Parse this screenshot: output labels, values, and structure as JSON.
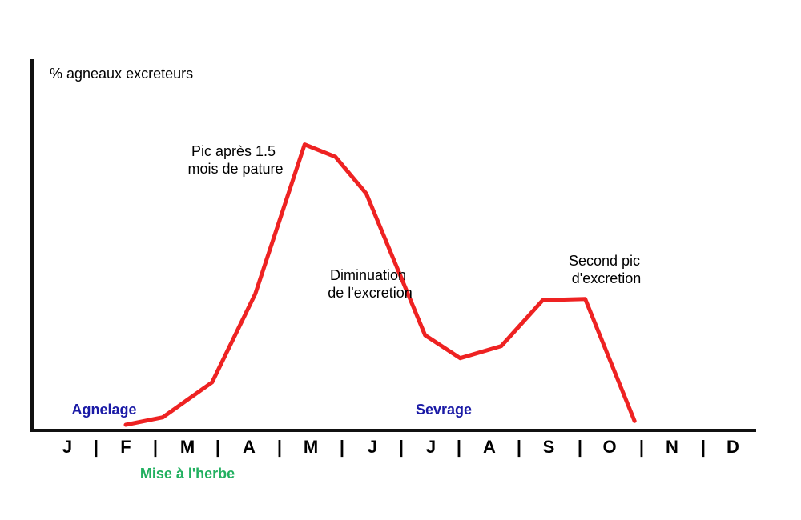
{
  "chart_data": {
    "type": "line",
    "ylabel": "% agneaux excreteurs",
    "categories": [
      "J",
      "F",
      "M",
      "A",
      "M",
      "J",
      "J",
      "A",
      "S",
      "O",
      "N",
      "D"
    ],
    "separator": "|",
    "series": [
      {
        "color": "#ee2222",
        "points": [
          {
            "x": 1.0,
            "y": 0
          },
          {
            "x": 1.6,
            "y": 2.6
          },
          {
            "x": 2.4,
            "y": 14.8
          },
          {
            "x": 3.1,
            "y": 45.6
          },
          {
            "x": 3.9,
            "y": 97.6
          },
          {
            "x": 4.4,
            "y": 93.3
          },
          {
            "x": 4.9,
            "y": 80.5
          },
          {
            "x": 5.9,
            "y": 31.2
          },
          {
            "x": 6.5,
            "y": 23.2
          },
          {
            "x": 7.2,
            "y": 27.4
          },
          {
            "x": 7.9,
            "y": 43.4
          },
          {
            "x": 8.6,
            "y": 43.8
          },
          {
            "x": 9.4,
            "y": 1.3
          }
        ]
      }
    ],
    "ylim": [
      0,
      100
    ],
    "axis_color": "#111111",
    "annotations": [
      {
        "lines": [
          "Pic après 1.5",
          "mois de pature"
        ]
      },
      {
        "lines": [
          "Diminuation",
          "de l'excretion"
        ]
      },
      {
        "lines": [
          "Second pic",
          "d'excretion"
        ]
      }
    ],
    "events": [
      {
        "label": "Agnelage",
        "color": "#1a1aa6"
      },
      {
        "label": "Sevrage",
        "color": "#1a1aa6"
      },
      {
        "label": "Mise à l'herbe",
        "color": "#22b060"
      }
    ]
  }
}
